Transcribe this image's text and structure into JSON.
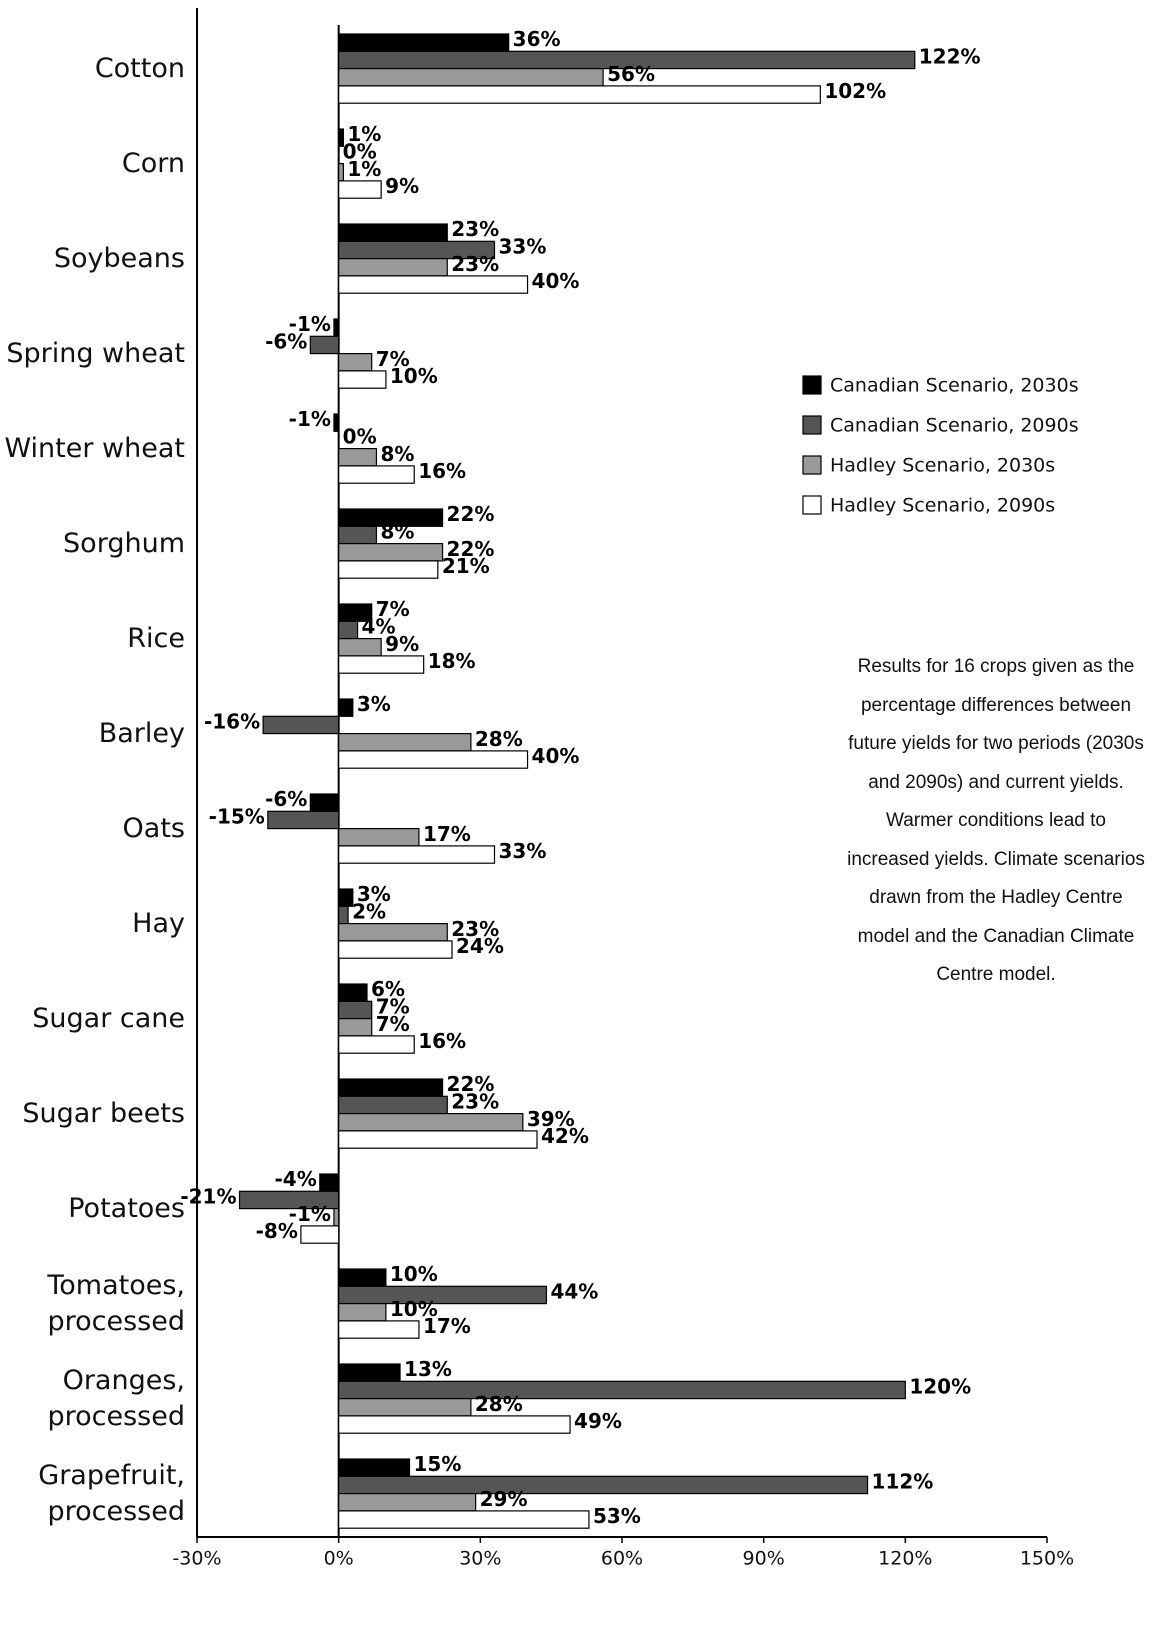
{
  "chart_data": {
    "type": "bar",
    "orientation": "horizontal",
    "categories": [
      "Cotton",
      "Corn",
      "Soybeans",
      "Spring wheat",
      "Winter wheat",
      "Sorghum",
      "Rice",
      "Barley",
      "Oats",
      "Hay",
      "Sugar cane",
      "Sugar beets",
      "Potatoes",
      "Tomatoes,\nprocessed",
      "Oranges,\nprocessed",
      "Grapefruit,\nprocessed"
    ],
    "series": [
      {
        "name": "Canadian Scenario, 2030s",
        "color": "#000000",
        "values": [
          36,
          1,
          23,
          -1,
          -1,
          22,
          7,
          3,
          -6,
          3,
          6,
          22,
          -4,
          10,
          13,
          15
        ],
        "value_labels": [
          "36%",
          "1%",
          "23%",
          "-1%",
          "-1%",
          "22%",
          "7%",
          "3%",
          "-6%",
          "3%",
          "6%",
          "22%",
          "-4%",
          "10%",
          "13%",
          "15%"
        ]
      },
      {
        "name": "Canadian Scenario, 2090s",
        "color": "#555555",
        "values": [
          122,
          0,
          33,
          -6,
          0,
          8,
          4,
          -16,
          -15,
          2,
          7,
          23,
          -21,
          44,
          120,
          112
        ],
        "value_labels": [
          "122%",
          "0%",
          "33%",
          "-6%",
          "0%",
          "8%",
          "4%",
          "-16%",
          "-15%",
          "2%",
          "7%",
          "23%",
          "-21%",
          "44%",
          "120%",
          "112%"
        ]
      },
      {
        "name": "Hadley Scenario, 2030s",
        "color": "#999999",
        "values": [
          56,
          1,
          23,
          7,
          8,
          22,
          9,
          28,
          17,
          23,
          7,
          39,
          -1,
          10,
          28,
          29
        ],
        "value_labels": [
          "56%",
          "1%",
          "23%",
          "7%",
          "8%",
          "22%",
          "9%",
          "28%",
          "17%",
          "23%",
          "7%",
          "39%",
          "-1%",
          "10%",
          "28%",
          "29%"
        ]
      },
      {
        "name": "Hadley Scenario, 2090s",
        "color": "#ffffff",
        "values": [
          102,
          9,
          40,
          10,
          16,
          21,
          18,
          40,
          33,
          24,
          16,
          42,
          -8,
          17,
          49,
          53
        ],
        "value_labels": [
          "102%",
          "9%",
          "40%",
          "10%",
          "16%",
          "21%",
          "18%",
          "40%",
          "33%",
          "24%",
          "16%",
          "42%",
          "-8%",
          "17%",
          "49%",
          "53%"
        ]
      }
    ],
    "xlim": [
      -30,
      150
    ],
    "xticks": [
      {
        "value": -30,
        "label": "-30%"
      },
      {
        "value": 0,
        "label": "0%"
      },
      {
        "value": 30,
        "label": "30%"
      },
      {
        "value": 60,
        "label": "60%"
      },
      {
        "value": 90,
        "label": "90%"
      },
      {
        "value": 120,
        "label": "120%"
      },
      {
        "value": 150,
        "label": "150%"
      }
    ],
    "annotation": "Results for 16 crops given as the percentage differences between future yields for two periods (2030s and 2090s) and current yields. Warmer conditions lead to increased yields. Climate scenarios drawn from the Hadley Centre model and the Canadian Climate Centre model."
  }
}
